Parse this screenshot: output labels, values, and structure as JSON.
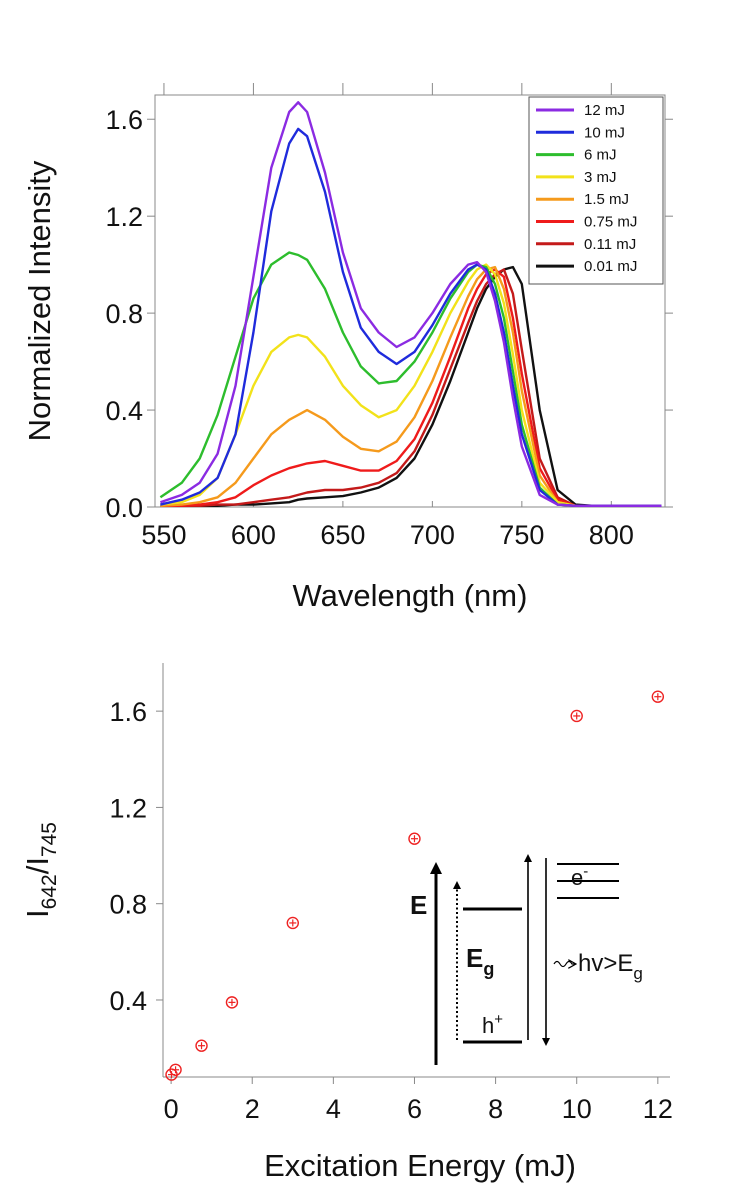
{
  "chart_data": [
    {
      "type": "line",
      "xlabel": "Wavelength (nm)",
      "ylabel": "Normalized Intensity",
      "xlim": [
        545,
        830
      ],
      "ylim": [
        0,
        1.7
      ],
      "xticks": [
        550,
        600,
        650,
        700,
        750,
        800
      ],
      "xtick_labels": [
        "550",
        "600",
        "650",
        "700",
        "750",
        "800"
      ],
      "yticks": [
        0,
        0.4,
        0.8,
        1.2,
        1.6
      ],
      "ytick_labels": [
        "0.0",
        "0.4",
        "0.8",
        "1.2",
        "1.6"
      ],
      "legend_position": "top-right",
      "x": [
        548,
        560,
        570,
        580,
        590,
        600,
        610,
        620,
        625,
        630,
        640,
        650,
        660,
        670,
        680,
        690,
        700,
        710,
        720,
        725,
        730,
        735,
        740,
        745,
        750,
        760,
        770,
        780,
        790,
        800,
        810,
        820,
        828
      ],
      "series": [
        {
          "name": "12 mJ",
          "color": "#8b2be2",
          "values": [
            0.02,
            0.05,
            0.1,
            0.22,
            0.5,
            0.95,
            1.4,
            1.63,
            1.67,
            1.63,
            1.38,
            1.05,
            0.82,
            0.72,
            0.66,
            0.7,
            0.8,
            0.92,
            1.0,
            1.01,
            0.97,
            0.85,
            0.68,
            0.45,
            0.25,
            0.05,
            0.01,
            0.005,
            0.005,
            0.005,
            0.005,
            0.005,
            0.005
          ]
        },
        {
          "name": "10 mJ",
          "color": "#1f2bdc",
          "values": [
            0.01,
            0.03,
            0.06,
            0.12,
            0.3,
            0.72,
            1.22,
            1.5,
            1.56,
            1.53,
            1.3,
            0.97,
            0.74,
            0.64,
            0.59,
            0.64,
            0.75,
            0.88,
            0.98,
            1.0,
            0.98,
            0.88,
            0.72,
            0.5,
            0.3,
            0.07,
            0.01,
            0.005,
            0.005,
            0.005,
            0.005,
            0.005,
            0.005
          ]
        },
        {
          "name": "6 mJ",
          "color": "#2dbd2d",
          "values": [
            0.04,
            0.1,
            0.2,
            0.38,
            0.62,
            0.86,
            1.0,
            1.05,
            1.04,
            1.02,
            0.9,
            0.72,
            0.58,
            0.51,
            0.52,
            0.6,
            0.72,
            0.86,
            0.97,
            1.0,
            0.99,
            0.92,
            0.78,
            0.56,
            0.34,
            0.08,
            0.01,
            0.005,
            0.005,
            0.005,
            0.005,
            0.005,
            0.005
          ]
        },
        {
          "name": "3 mJ",
          "color": "#f2e21a",
          "values": [
            0.01,
            0.02,
            0.05,
            0.12,
            0.3,
            0.5,
            0.64,
            0.7,
            0.71,
            0.7,
            0.62,
            0.5,
            0.42,
            0.37,
            0.4,
            0.5,
            0.64,
            0.8,
            0.93,
            0.98,
            1.0,
            0.96,
            0.84,
            0.63,
            0.4,
            0.1,
            0.02,
            0.005,
            0.005,
            0.005,
            0.005,
            0.005,
            0.005
          ]
        },
        {
          "name": "1.5 mJ",
          "color": "#f59a1c",
          "values": [
            0.005,
            0.01,
            0.02,
            0.04,
            0.1,
            0.2,
            0.3,
            0.36,
            0.38,
            0.4,
            0.36,
            0.29,
            0.24,
            0.23,
            0.27,
            0.37,
            0.52,
            0.7,
            0.87,
            0.94,
            0.98,
            0.99,
            0.9,
            0.72,
            0.48,
            0.13,
            0.02,
            0.005,
            0.005,
            0.005,
            0.005,
            0.005,
            0.005
          ]
        },
        {
          "name": "0.75 mJ",
          "color": "#ef1b1b",
          "values": [
            0.005,
            0.005,
            0.01,
            0.02,
            0.04,
            0.09,
            0.13,
            0.16,
            0.17,
            0.18,
            0.19,
            0.17,
            0.15,
            0.15,
            0.19,
            0.28,
            0.43,
            0.62,
            0.82,
            0.9,
            0.96,
            0.98,
            0.95,
            0.78,
            0.55,
            0.16,
            0.03,
            0.005,
            0.005,
            0.005,
            0.005,
            0.005,
            0.005
          ]
        },
        {
          "name": "0.11 mJ",
          "color": "#c41a1a",
          "values": [
            0.005,
            0.005,
            0.005,
            0.01,
            0.01,
            0.02,
            0.03,
            0.04,
            0.05,
            0.06,
            0.07,
            0.07,
            0.08,
            0.1,
            0.14,
            0.23,
            0.38,
            0.57,
            0.76,
            0.85,
            0.92,
            0.96,
            0.98,
            0.88,
            0.65,
            0.2,
            0.04,
            0.005,
            0.005,
            0.005,
            0.005,
            0.005,
            0.005
          ]
        },
        {
          "name": "0.01 mJ",
          "color": "#111111",
          "values": [
            0.005,
            0.005,
            0.005,
            0.005,
            0.01,
            0.01,
            0.015,
            0.02,
            0.03,
            0.035,
            0.04,
            0.045,
            0.06,
            0.08,
            0.12,
            0.2,
            0.34,
            0.52,
            0.72,
            0.82,
            0.9,
            0.95,
            0.98,
            0.99,
            0.92,
            0.4,
            0.07,
            0.01,
            0.005,
            0.005,
            0.005,
            0.005,
            0.005
          ]
        }
      ]
    },
    {
      "type": "scatter",
      "xlabel": "Excitation Energy (mJ)",
      "ylabel_base": "I",
      "ylabel_num_sub": "642",
      "ylabel_sep": "/I",
      "ylabel_den_sub": "745",
      "xlim": [
        -0.2,
        12.3
      ],
      "ylim": [
        0.08,
        1.8
      ],
      "xticks": [
        0,
        2,
        4,
        6,
        8,
        10,
        12
      ],
      "xtick_labels": [
        "0",
        "2",
        "4",
        "6",
        "8",
        "10",
        "12"
      ],
      "yticks": [
        0.4,
        0.8,
        1.2,
        1.6
      ],
      "ytick_labels": [
        "0.4",
        "0.8",
        "1.2",
        "1.6"
      ],
      "marker_color": "#ee2222",
      "points": [
        {
          "x": 0.01,
          "y": 0.09
        },
        {
          "x": 0.11,
          "y": 0.11
        },
        {
          "x": 0.75,
          "y": 0.21
        },
        {
          "x": 1.5,
          "y": 0.39
        },
        {
          "x": 3,
          "y": 0.72
        },
        {
          "x": 6,
          "y": 1.07
        },
        {
          "x": 10,
          "y": 1.58
        },
        {
          "x": 12,
          "y": 1.66
        }
      ],
      "inset": {
        "energy_axis_label": "E",
        "gap_label_base": "E",
        "gap_label_sub": "g",
        "electron_label": "e",
        "electron_sup": "-",
        "hole_label": "h",
        "hole_sup": "+",
        "photon_label_base": "hv>E",
        "photon_label_sub": "g"
      }
    }
  ]
}
